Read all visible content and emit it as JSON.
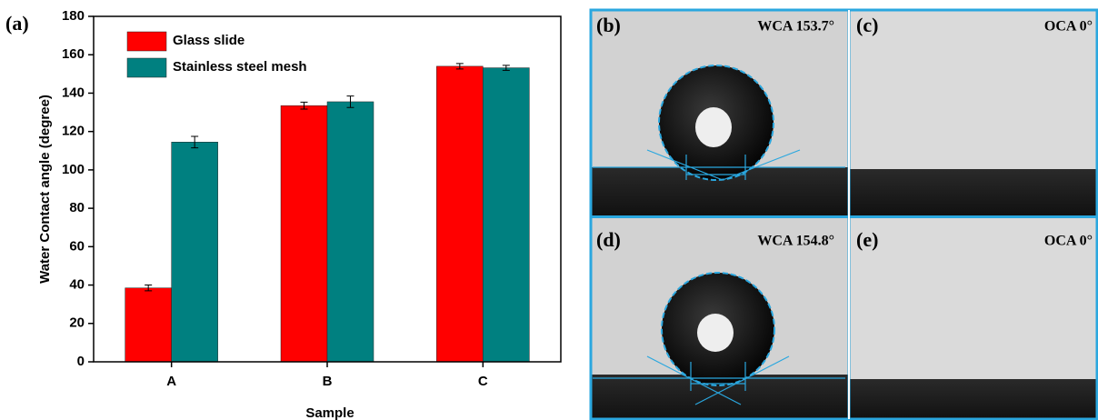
{
  "chart_data": {
    "type": "bar",
    "title": "(a)",
    "x_label": "Sample",
    "y_label": "Water Contact angle (degree)",
    "categories": [
      "A",
      "B",
      "C"
    ],
    "series": [
      {
        "name": "Glass slide",
        "color": "#ff0000",
        "values": [
          38.5,
          133.5,
          154
        ],
        "errors": [
          1.5,
          1.8,
          1.4
        ]
      },
      {
        "name": "Stainless steel mesh",
        "color": "#008080",
        "values": [
          114.5,
          135.5,
          153.2
        ],
        "errors": [
          3,
          3,
          1.3
        ]
      }
    ],
    "ylim": [
      0,
      180
    ],
    "yticks": [
      0,
      20,
      40,
      60,
      80,
      100,
      120,
      140,
      160,
      180
    ],
    "legend": "upper left"
  },
  "panels": [
    {
      "label": "(b)",
      "text": "WCA 153.7°"
    },
    {
      "label": "(c)",
      "text": "OCA 0°"
    },
    {
      "label": "(d)",
      "text": "WCA 154.8°"
    },
    {
      "label": "(e)",
      "text": "OCA 0°"
    }
  ]
}
